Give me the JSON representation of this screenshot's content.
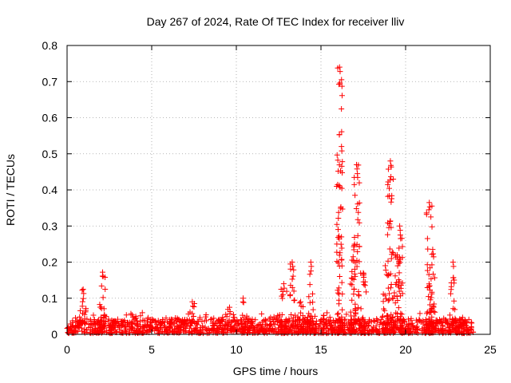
{
  "chart_data": {
    "type": "scatter",
    "title": "Day 267 of 2024, Rate Of TEC Index for receiver lliv",
    "xlabel": "GPS time / hours",
    "ylabel": "ROTI / TECUs",
    "xlim": [
      0,
      25
    ],
    "ylim": [
      0,
      0.8
    ],
    "xticks": [
      0,
      5,
      10,
      15,
      20,
      25
    ],
    "yticks": [
      0,
      0.1,
      0.2,
      0.3,
      0.4,
      0.5,
      0.6,
      0.7,
      0.8
    ],
    "xtick_labels": [
      "0",
      "5",
      "10",
      "15",
      "20",
      "25"
    ],
    "ytick_labels": [
      "0",
      "0.1",
      "0.2",
      "0.3",
      "0.4",
      "0.5",
      "0.6",
      "0.7",
      "0.8"
    ],
    "grid": true,
    "marker": "plus",
    "color": "#ff0000",
    "series": [
      {
        "name": "ROTI",
        "baseline": {
          "x_range": [
            0,
            24
          ],
          "typical_max": 0.04
        },
        "spikes": [
          {
            "x": 0.95,
            "peak": 0.125
          },
          {
            "x": 2.1,
            "peak": 0.172
          },
          {
            "x": 7.4,
            "peak": 0.09
          },
          {
            "x": 9.6,
            "peak": 0.075
          },
          {
            "x": 10.4,
            "peak": 0.1
          },
          {
            "x": 12.8,
            "peak": 0.14
          },
          {
            "x": 13.3,
            "peak": 0.2
          },
          {
            "x": 13.8,
            "peak": 0.09
          },
          {
            "x": 14.4,
            "peak": 0.2
          },
          {
            "x": 16.1,
            "peak": 0.74
          },
          {
            "x": 16.9,
            "peak": 0.215
          },
          {
            "x": 17.1,
            "peak": 0.47
          },
          {
            "x": 17.5,
            "peak": 0.17
          },
          {
            "x": 18.8,
            "peak": 0.19
          },
          {
            "x": 19.1,
            "peak": 0.48
          },
          {
            "x": 19.5,
            "peak": 0.22
          },
          {
            "x": 19.65,
            "peak": 0.3
          },
          {
            "x": 21.4,
            "peak": 0.365
          },
          {
            "x": 21.6,
            "peak": 0.235
          },
          {
            "x": 22.8,
            "peak": 0.2
          }
        ]
      }
    ]
  }
}
